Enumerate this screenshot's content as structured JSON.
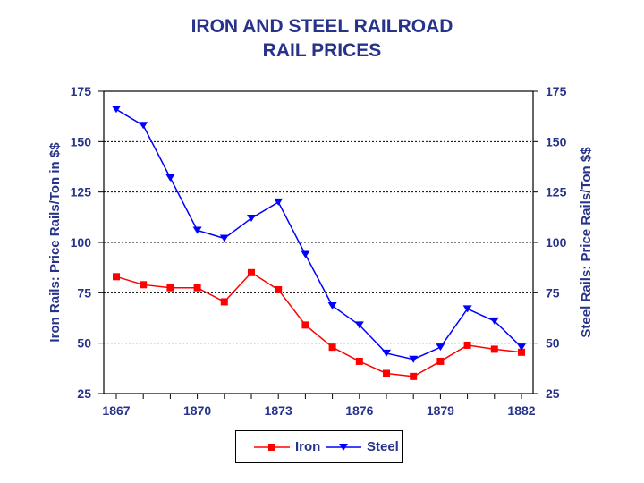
{
  "chart_data": {
    "type": "line",
    "title": "IRON AND STEEL RAILROAD",
    "subtitle": "RAIL PRICES",
    "ylabel_left": "Iron Rails:  Price Rails/Ton in $$",
    "ylabel_right": "Steel Rails:  Price Rails/Ton $$",
    "ylim": [
      25,
      175
    ],
    "yticks": [
      25,
      50,
      75,
      100,
      125,
      150,
      175
    ],
    "xlim": [
      1867,
      1882
    ],
    "xticks": [
      1867,
      1870,
      1873,
      1876,
      1879,
      1882
    ],
    "grid": "horizontal-dashed",
    "legend_position": "bottom",
    "x": [
      1867,
      1868,
      1869,
      1870,
      1871,
      1872,
      1873,
      1874,
      1875,
      1876,
      1877,
      1878,
      1879,
      1880,
      1881,
      1882
    ],
    "series": [
      {
        "name": "Iron",
        "color": "#ff0000",
        "marker": "square",
        "values": [
          83,
          79,
          77.5,
          77.5,
          70.5,
          85,
          76.5,
          59,
          48,
          41,
          35,
          33.5,
          41,
          49,
          47,
          45.5
        ]
      },
      {
        "name": "Steel",
        "color": "#0000ff",
        "marker": "triangle-down",
        "values": [
          166,
          158,
          132,
          106,
          102,
          112,
          120,
          94,
          68.5,
          59,
          45,
          42,
          48,
          67,
          61,
          48
        ]
      }
    ]
  }
}
